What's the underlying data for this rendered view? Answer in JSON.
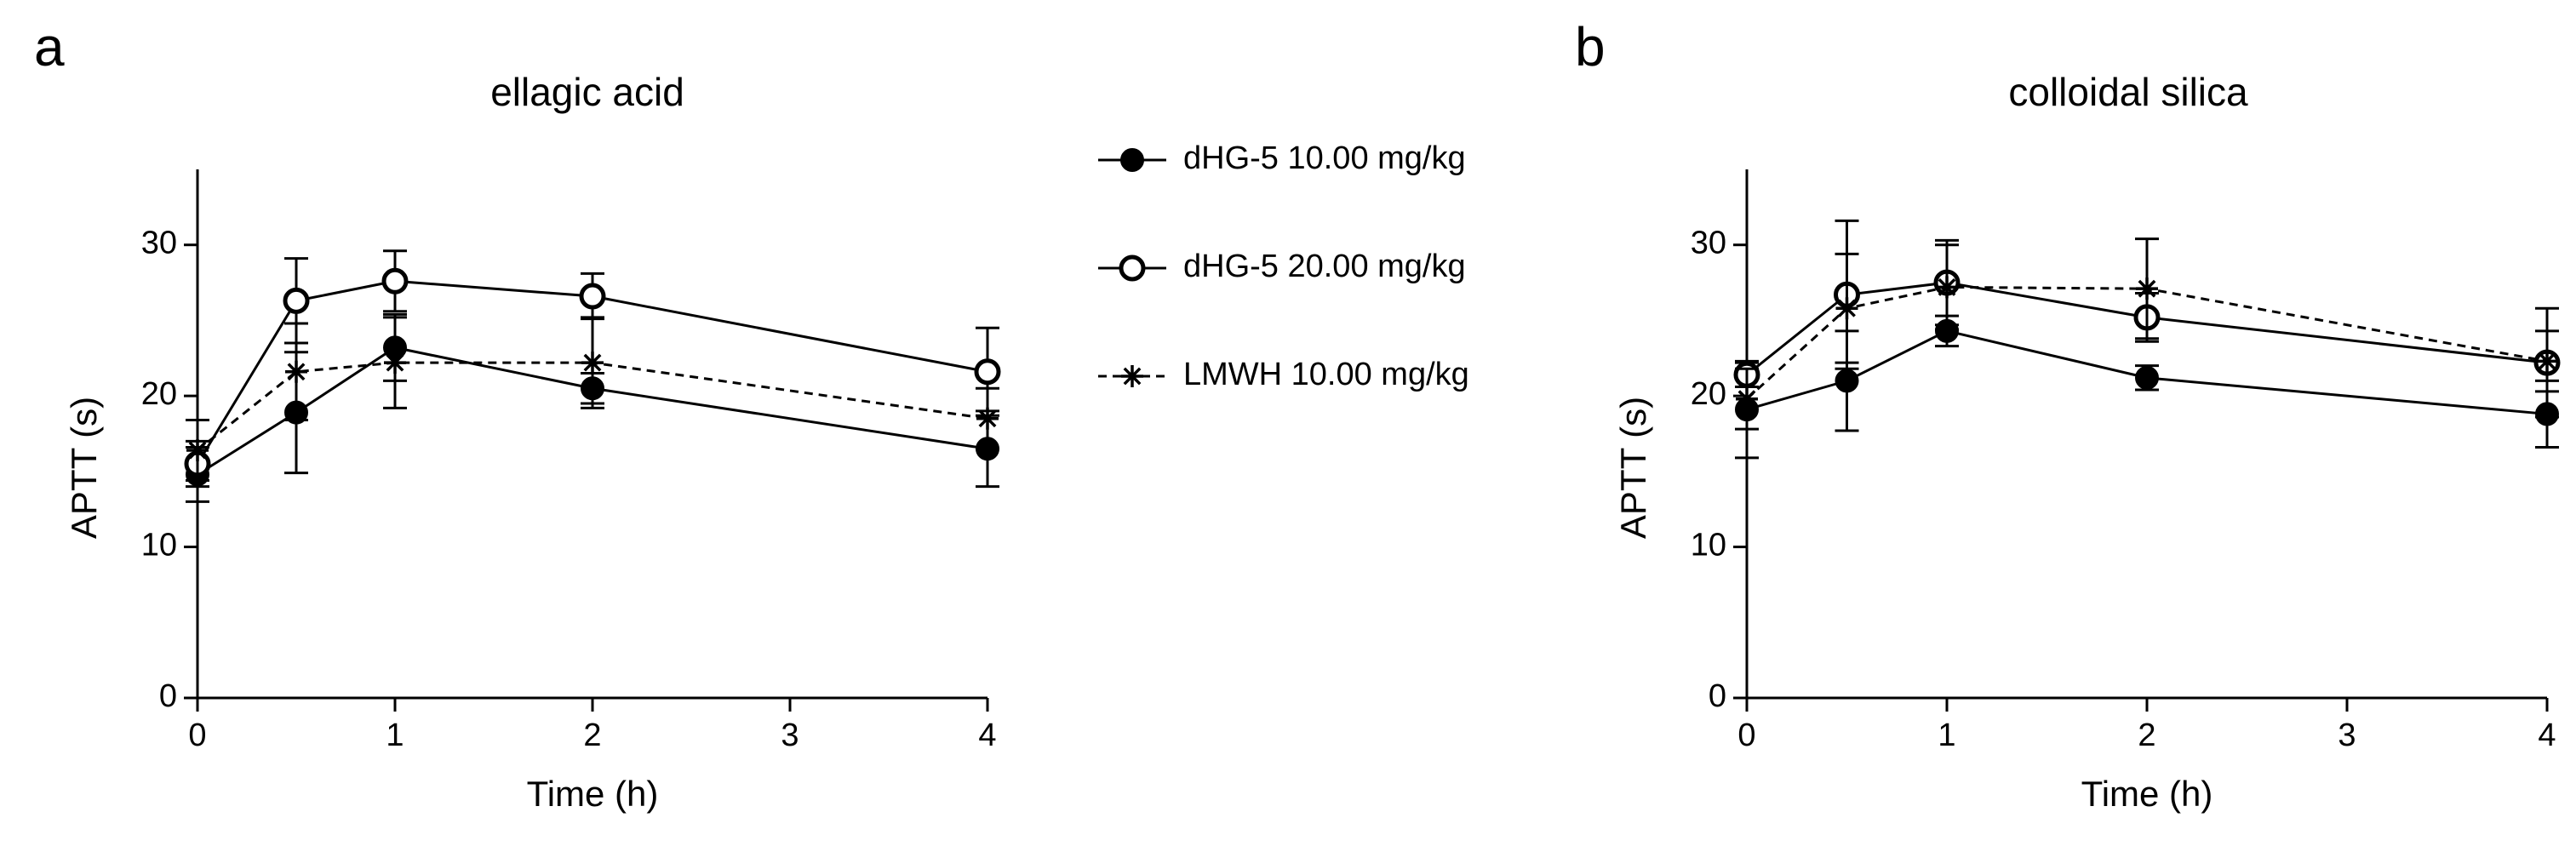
{
  "chart_data": [
    {
      "type": "line",
      "panel_label": "a",
      "title": "ellagic acid",
      "x_label": "Time (h)",
      "y_label": "APTT (s)",
      "x": [
        0,
        0.5,
        1,
        2,
        4
      ],
      "xlim": [
        0,
        4
      ],
      "xticks": [
        0,
        1,
        2,
        3,
        4
      ],
      "ylim": [
        0,
        35
      ],
      "yticks": [
        0,
        10,
        20,
        30
      ],
      "legend": "right",
      "series": [
        {
          "name": "dHG-5 10.00 mg/kg",
          "color": "#000000",
          "marker": "filled-circle",
          "dashed": false,
          "values": [
            14.8,
            18.9,
            23.2,
            20.5,
            16.5
          ],
          "errors": [
            1.8,
            4.0,
            2.2,
            1.0,
            2.5
          ]
        },
        {
          "name": "dHG-5 20.00 mg/kg",
          "color": "#000000",
          "marker": "open-circle",
          "dashed": false,
          "values": [
            15.5,
            26.3,
            27.6,
            26.6,
            21.6
          ],
          "errors": [
            1.5,
            2.8,
            2.0,
            1.5,
            2.9
          ]
        },
        {
          "name": "LMWH 10.00 mg/kg",
          "color": "#000000",
          "marker": "star",
          "dashed": true,
          "values": [
            16.4,
            21.6,
            22.2,
            22.2,
            18.5
          ],
          "errors": [
            2.0,
            3.2,
            3.0,
            3.0,
            2.0
          ]
        }
      ]
    },
    {
      "type": "line",
      "panel_label": "b",
      "title": "colloidal silica",
      "x_label": "Time (h)",
      "y_label": "APTT (s)",
      "x": [
        0,
        0.5,
        1,
        2,
        4
      ],
      "xlim": [
        0,
        4
      ],
      "xticks": [
        0,
        1,
        2,
        3,
        4
      ],
      "ylim": [
        0,
        35
      ],
      "yticks": [
        0,
        10,
        20,
        30
      ],
      "series": [
        {
          "color": "#000000",
          "marker": "filled-circle",
          "dashed": false,
          "values": [
            19.1,
            21.0,
            24.3,
            21.2,
            18.8
          ],
          "errors": [
            3.2,
            3.3,
            1.0,
            0.8,
            2.2
          ]
        },
        {
          "color": "#000000",
          "marker": "open-circle",
          "dashed": false,
          "values": [
            21.4,
            26.7,
            27.5,
            25.2,
            22.2
          ],
          "errors": [
            0.8,
            4.9,
            2.8,
            1.6,
            3.6
          ]
        },
        {
          "color": "#000000",
          "marker": "star",
          "dashed": true,
          "values": [
            19.8,
            25.8,
            27.2,
            27.1,
            22.3
          ],
          "errors": [
            2.0,
            3.6,
            2.8,
            3.3,
            2.0
          ]
        }
      ]
    }
  ]
}
